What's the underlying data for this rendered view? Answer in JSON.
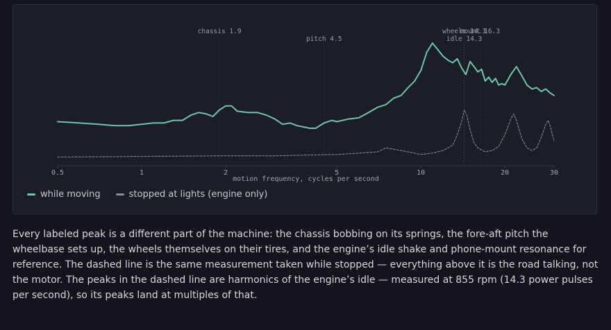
{
  "chart_data": {
    "type": "line",
    "xscale": "log",
    "xlim": [
      0.5,
      30
    ],
    "xlabel": "motion frequency, cycles per second",
    "xticks": [
      {
        "value": 0.5,
        "label": "0.5"
      },
      {
        "value": 1,
        "label": "1"
      },
      {
        "value": 2,
        "label": "2"
      },
      {
        "value": 5,
        "label": "5"
      },
      {
        "value": 10,
        "label": "10"
      },
      {
        "value": 20,
        "label": "20"
      },
      {
        "value": 30,
        "label": "30"
      }
    ],
    "ylabel": "",
    "yaxis_visible": false,
    "ylim": [
      0,
      1
    ],
    "grid": false,
    "legend_position": "bottom-left",
    "series": [
      {
        "name": "while moving",
        "color": "#6cc7ae",
        "style": "solid",
        "points": [
          [
            0.5,
            0.32
          ],
          [
            0.6,
            0.31
          ],
          [
            0.7,
            0.3
          ],
          [
            0.8,
            0.29
          ],
          [
            0.9,
            0.29
          ],
          [
            1.0,
            0.3
          ],
          [
            1.1,
            0.31
          ],
          [
            1.2,
            0.31
          ],
          [
            1.3,
            0.33
          ],
          [
            1.4,
            0.33
          ],
          [
            1.5,
            0.37
          ],
          [
            1.6,
            0.39
          ],
          [
            1.7,
            0.38
          ],
          [
            1.8,
            0.36
          ],
          [
            1.9,
            0.41
          ],
          [
            2.0,
            0.44
          ],
          [
            2.1,
            0.44
          ],
          [
            2.2,
            0.4
          ],
          [
            2.4,
            0.39
          ],
          [
            2.6,
            0.39
          ],
          [
            2.8,
            0.37
          ],
          [
            3.0,
            0.34
          ],
          [
            3.2,
            0.3
          ],
          [
            3.4,
            0.31
          ],
          [
            3.6,
            0.29
          ],
          [
            3.8,
            0.28
          ],
          [
            4.0,
            0.27
          ],
          [
            4.2,
            0.27
          ],
          [
            4.5,
            0.31
          ],
          [
            4.8,
            0.33
          ],
          [
            5.0,
            0.32
          ],
          [
            5.5,
            0.34
          ],
          [
            6.0,
            0.35
          ],
          [
            6.5,
            0.39
          ],
          [
            7.0,
            0.43
          ],
          [
            7.5,
            0.45
          ],
          [
            8.0,
            0.5
          ],
          [
            8.5,
            0.52
          ],
          [
            9.0,
            0.58
          ],
          [
            9.5,
            0.63
          ],
          [
            10.0,
            0.71
          ],
          [
            10.5,
            0.85
          ],
          [
            11.0,
            0.92
          ],
          [
            11.5,
            0.87
          ],
          [
            12.0,
            0.82
          ],
          [
            12.5,
            0.79
          ],
          [
            13.0,
            0.77
          ],
          [
            13.5,
            0.8
          ],
          [
            14.0,
            0.73
          ],
          [
            14.5,
            0.68
          ],
          [
            15.0,
            0.78
          ],
          [
            15.5,
            0.74
          ],
          [
            16.0,
            0.7
          ],
          [
            16.5,
            0.72
          ],
          [
            17.0,
            0.63
          ],
          [
            17.5,
            0.66
          ],
          [
            18.0,
            0.62
          ],
          [
            18.5,
            0.65
          ],
          [
            19.0,
            0.6
          ],
          [
            19.5,
            0.61
          ],
          [
            20.0,
            0.6
          ],
          [
            20.5,
            0.64
          ],
          [
            21.0,
            0.68
          ],
          [
            22.0,
            0.74
          ],
          [
            23.0,
            0.67
          ],
          [
            24.0,
            0.6
          ],
          [
            25.0,
            0.57
          ],
          [
            26.0,
            0.58
          ],
          [
            27.0,
            0.55
          ],
          [
            28.0,
            0.57
          ],
          [
            29.0,
            0.54
          ],
          [
            30.0,
            0.52
          ]
        ]
      },
      {
        "name": "stopped at lights (engine only)",
        "color": "#8d8f98",
        "style": "dashed",
        "points": [
          [
            0.5,
            0.05
          ],
          [
            1.0,
            0.055
          ],
          [
            2.0,
            0.06
          ],
          [
            3.0,
            0.06
          ],
          [
            5.0,
            0.07
          ],
          [
            6.0,
            0.08
          ],
          [
            7.0,
            0.09
          ],
          [
            7.5,
            0.12
          ],
          [
            8.0,
            0.11
          ],
          [
            9.0,
            0.09
          ],
          [
            10.0,
            0.07
          ],
          [
            11.0,
            0.08
          ],
          [
            12.0,
            0.1
          ],
          [
            13.0,
            0.14
          ],
          [
            13.5,
            0.22
          ],
          [
            14.0,
            0.32
          ],
          [
            14.3,
            0.41
          ],
          [
            14.6,
            0.37
          ],
          [
            15.0,
            0.26
          ],
          [
            15.5,
            0.16
          ],
          [
            16.0,
            0.12
          ],
          [
            17.0,
            0.09
          ],
          [
            18.0,
            0.1
          ],
          [
            19.0,
            0.13
          ],
          [
            20.0,
            0.22
          ],
          [
            21.0,
            0.34
          ],
          [
            21.5,
            0.38
          ],
          [
            22.0,
            0.33
          ],
          [
            23.0,
            0.19
          ],
          [
            24.0,
            0.12
          ],
          [
            25.0,
            0.1
          ],
          [
            26.0,
            0.12
          ],
          [
            27.0,
            0.2
          ],
          [
            28.0,
            0.3
          ],
          [
            28.6,
            0.33
          ],
          [
            29.2,
            0.27
          ],
          [
            30.0,
            0.17
          ]
        ]
      }
    ],
    "annotations": [
      {
        "x": 1.9,
        "label": "chassis 1.9",
        "row": 0
      },
      {
        "x": 4.5,
        "label": "pitch 4.5",
        "row": 1
      },
      {
        "x": 14.3,
        "label": "wheels 14.3",
        "row": 0
      },
      {
        "x": 16.3,
        "label": "mount 16.3",
        "row": 0
      },
      {
        "x": 14.3,
        "label": "idle 14.3",
        "row": 1
      }
    ]
  },
  "caption": "Every labeled peak is a different part of the machine: the chassis bobbing on its springs, the fore-aft pitch the wheelbase sets up, the wheels themselves on their tires, and the engine’s idle shake and phone-mount resonance for reference. The dashed line is the same measurement taken while stopped — everything above it is the road talking, not the motor. The peaks in the dashed line are harmonics of the engine’s idle — measured at 855 rpm (14.3 power pulses per second), so its peaks land at multiples of that."
}
